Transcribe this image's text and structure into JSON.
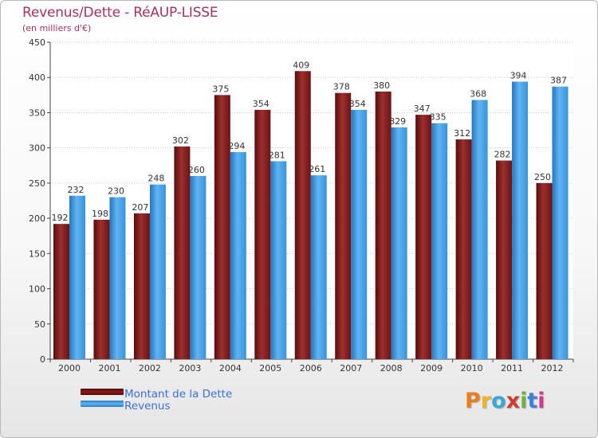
{
  "chart_data": {
    "type": "bar",
    "title": "Revenus/Dette - RéAUP-LISSE",
    "subtitle": "(en milliers d'€)",
    "categories": [
      "2000",
      "2001",
      "2002",
      "2003",
      "2004",
      "2005",
      "2006",
      "2007",
      "2008",
      "2009",
      "2010",
      "2011",
      "2012"
    ],
    "series": [
      {
        "name": "Montant de la Dette",
        "color": "#8b1a1a",
        "values": [
          192,
          198,
          207,
          302,
          375,
          354,
          409,
          378,
          380,
          347,
          312,
          282,
          250
        ]
      },
      {
        "name": "Revenus",
        "color": "#3f9fe6",
        "values": [
          232,
          230,
          248,
          260,
          294,
          281,
          261,
          354,
          329,
          335,
          368,
          394,
          387
        ]
      }
    ],
    "ylim": [
      0,
      450
    ],
    "yticks": [
      0,
      50,
      100,
      150,
      200,
      250,
      300,
      350,
      400,
      450
    ],
    "grid": true,
    "legend_position": "bottom-left"
  },
  "logo": {
    "text": "Proxiti",
    "colors": [
      "#e87e1c",
      "#f0b428",
      "#3fa6d8",
      "#d13a2e",
      "#6cb33f",
      "#3f7fd8",
      "#d13a8a"
    ]
  }
}
